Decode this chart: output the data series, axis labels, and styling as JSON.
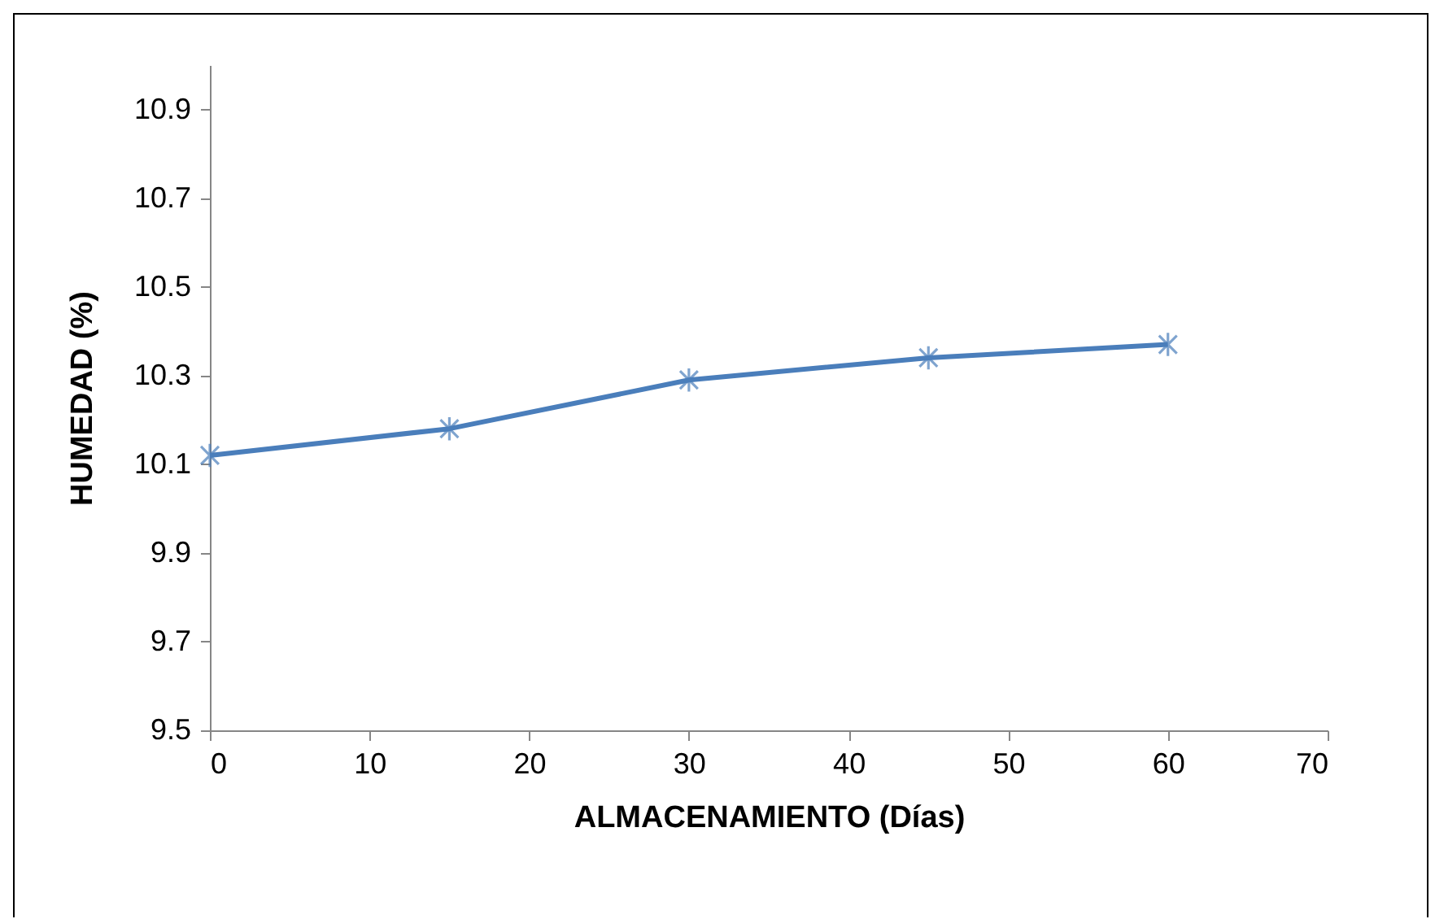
{
  "chart_data": {
    "type": "line",
    "xlabel": "ALMACENAMIENTO (Días)",
    "ylabel": "HUMEDAD  (%)",
    "x": [
      0,
      15,
      30,
      45,
      60
    ],
    "series": [
      {
        "color": "#4a7ebb",
        "values": [
          10.12,
          10.18,
          10.29,
          10.34,
          10.37
        ]
      }
    ],
    "xlim": [
      0,
      70
    ],
    "xticks": [
      0,
      10,
      20,
      30,
      40,
      50,
      60,
      70
    ],
    "ylim": [
      9.5,
      11.0
    ],
    "yticks": [
      9.5,
      9.7,
      9.9,
      10.1,
      10.3,
      10.5,
      10.7,
      10.9
    ],
    "grid": false,
    "legend": false,
    "marker": "cross",
    "line_style": "solid"
  }
}
